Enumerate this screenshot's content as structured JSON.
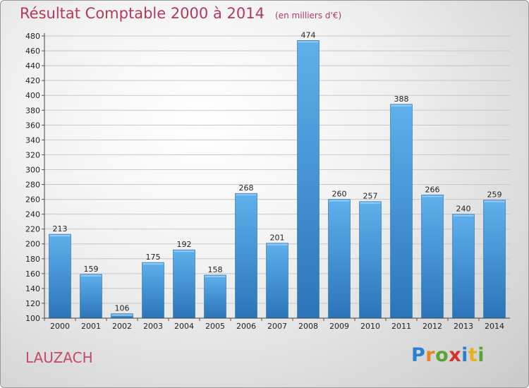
{
  "header": {
    "title": "Résultat Comptable 2000 à 2014",
    "unit": "(en milliers d'€)"
  },
  "footer": {
    "commune": "LAUZACH",
    "logo_letters": [
      {
        "ch": "P",
        "color": "#2a7fd0"
      },
      {
        "ch": "r",
        "color": "#e8851e"
      },
      {
        "ch": "o",
        "color": "#5aa532"
      },
      {
        "ch": "x",
        "color": "#d6322c"
      },
      {
        "ch": "i",
        "color": "#2a7fd0"
      },
      {
        "ch": "t",
        "color": "#e8b21e"
      },
      {
        "ch": "i",
        "color": "#5aa532"
      }
    ]
  },
  "chart_data": {
    "type": "bar",
    "title": "Résultat Comptable 2000 à 2014",
    "subtitle": "(en milliers d'€)",
    "xlabel": "",
    "ylabel": "",
    "categories": [
      "2000",
      "2001",
      "2002",
      "2003",
      "2004",
      "2005",
      "2006",
      "2007",
      "2008",
      "2009",
      "2010",
      "2011",
      "2012",
      "2013",
      "2014"
    ],
    "values": [
      213,
      159,
      106,
      175,
      192,
      158,
      268,
      201,
      474,
      260,
      257,
      388,
      266,
      240,
      259
    ],
    "ylim": [
      100,
      480
    ],
    "yticks": [
      100,
      120,
      140,
      160,
      180,
      200,
      220,
      240,
      260,
      280,
      300,
      320,
      340,
      360,
      380,
      400,
      420,
      440,
      460,
      480
    ],
    "grid": "horizontal",
    "legend": "none",
    "bar_color": "#3d93d8"
  }
}
